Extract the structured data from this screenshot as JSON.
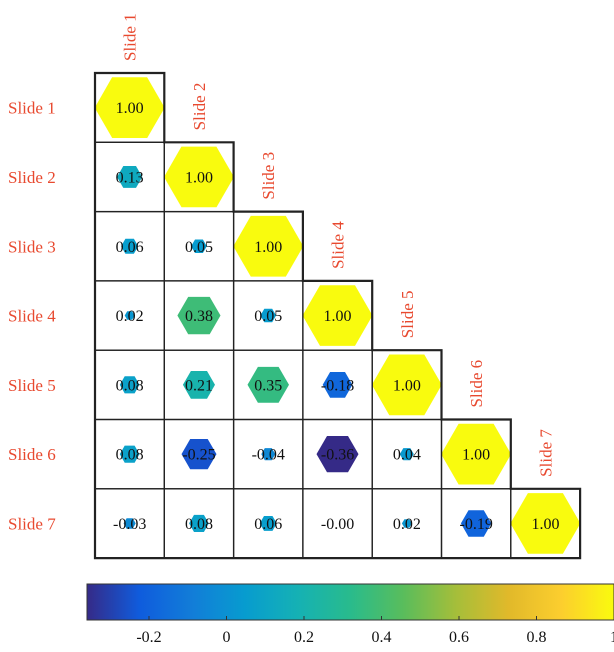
{
  "chart_data": {
    "type": "heatmap",
    "variant": "lower-triangular correlation matrix with hexagon markers sized and colored by value",
    "labels": [
      "Slide 1",
      "Slide 2",
      "Slide 3",
      "Slide 4",
      "Slide 5",
      "Slide 6",
      "Slide 7"
    ],
    "values": [
      [
        "1.00"
      ],
      [
        "0.13",
        "1.00"
      ],
      [
        "0.06",
        "0.05",
        "1.00"
      ],
      [
        "0.02",
        "0.38",
        "0.05",
        "1.00"
      ],
      [
        "0.08",
        "0.21",
        "0.35",
        "-0.18",
        "1.00"
      ],
      [
        "0.08",
        "-0.25",
        "-0.04",
        "-0.36",
        "0.04",
        "1.00"
      ],
      [
        "-0.03",
        "0.08",
        "0.06",
        "-0.00",
        "0.02",
        "-0.19",
        "1.00"
      ]
    ],
    "colorbar": {
      "range": [
        -0.36,
        1
      ],
      "ticks": [
        -0.2,
        0,
        0.2,
        0.4,
        0.6,
        0.8,
        1
      ],
      "tick_labels": [
        "-0.2",
        "0",
        "0.2",
        "0.4",
        "0.6",
        "0.8",
        "1"
      ],
      "colormap": "parula"
    }
  },
  "colors": {
    "label": "#e8492f",
    "grid": "#222222",
    "text": "#111111"
  }
}
